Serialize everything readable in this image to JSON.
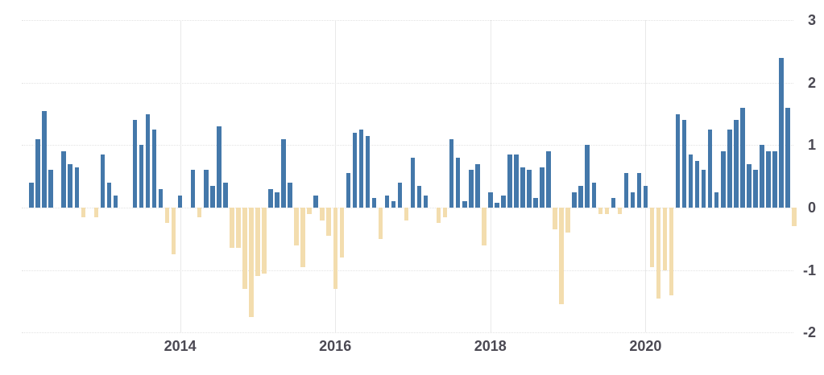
{
  "chart_data": {
    "type": "bar",
    "title": "",
    "xlabel": "",
    "ylabel": "",
    "x_unit": "month",
    "x_range": [
      "2012-01",
      "2021-12"
    ],
    "ylim": [
      -2,
      3
    ],
    "legend": "none",
    "grid": {
      "horizontal": "dotted light gray at integer values",
      "vertical": "solid light gray at year ticks"
    },
    "positive_color": "#4478aa",
    "negative_color": "#f3ddae",
    "axis_label_color": "#4b4953",
    "y_ticks": [
      {
        "label": "3",
        "value": 3
      },
      {
        "label": "2",
        "value": 2
      },
      {
        "label": "1",
        "value": 1
      },
      {
        "label": "0",
        "value": 0
      },
      {
        "label": "-1",
        "value": -1
      },
      {
        "label": "-2",
        "value": -2
      }
    ],
    "x_ticks": [
      {
        "label": "2014",
        "month_index": 24
      },
      {
        "label": "2016",
        "month_index": 48
      },
      {
        "label": "2018",
        "month_index": 72
      },
      {
        "label": "2020",
        "month_index": 96
      }
    ],
    "series_by_year": [
      {
        "year": 2012,
        "monthly_values": [
          0,
          0.4,
          1.1,
          1.55,
          0.6,
          0,
          0.9,
          0.7,
          0.65,
          -0.15,
          0,
          -0.15
        ]
      },
      {
        "year": 2013,
        "monthly_values": [
          0.85,
          0.4,
          0.2,
          0,
          0,
          1.4,
          1.0,
          1.5,
          1.25,
          0.3,
          -0.25,
          -0.75
        ]
      },
      {
        "year": 2014,
        "monthly_values": [
          0.2,
          0,
          0.6,
          -0.15,
          0.6,
          0.35,
          1.3,
          0.4,
          -0.65,
          -0.65,
          -1.3,
          -1.75
        ]
      },
      {
        "year": 2015,
        "monthly_values": [
          -1.1,
          -1.05,
          0.3,
          0.25,
          1.1,
          0.4,
          -0.6,
          -0.95,
          -0.1,
          0.2,
          -0.2,
          -0.45
        ]
      },
      {
        "year": 2016,
        "monthly_values": [
          -1.3,
          -0.8,
          0.55,
          1.2,
          1.25,
          1.15,
          0.15,
          -0.5,
          0.2,
          0.1,
          0.4,
          -0.2
        ]
      },
      {
        "year": 2017,
        "monthly_values": [
          0.8,
          0.35,
          0.2,
          0,
          -0.25,
          -0.15,
          1.1,
          0.8,
          0.1,
          0.6,
          0.7,
          -0.6
        ]
      },
      {
        "year": 2018,
        "monthly_values": [
          0.25,
          0.08,
          0.2,
          0.85,
          0.85,
          0.65,
          0.6,
          0.15,
          0.65,
          0.9,
          -0.35,
          -1.55
        ]
      },
      {
        "year": 2019,
        "monthly_values": [
          -0.4,
          0.25,
          0.35,
          1.0,
          0.4,
          -0.1,
          -0.1,
          0.15,
          -0.1,
          0.55,
          0.25,
          0.55
        ]
      },
      {
        "year": 2020,
        "monthly_values": [
          0.35,
          -0.95,
          -1.45,
          -1.0,
          -1.4,
          1.5,
          1.4,
          0.85,
          0.75,
          0.6,
          1.25,
          0.25
        ]
      },
      {
        "year": 2021,
        "monthly_values": [
          0.9,
          1.25,
          1.4,
          1.6,
          0.7,
          0.6,
          1.0,
          0.9,
          0.9,
          2.4,
          1.6,
          -0.3
        ]
      }
    ]
  }
}
